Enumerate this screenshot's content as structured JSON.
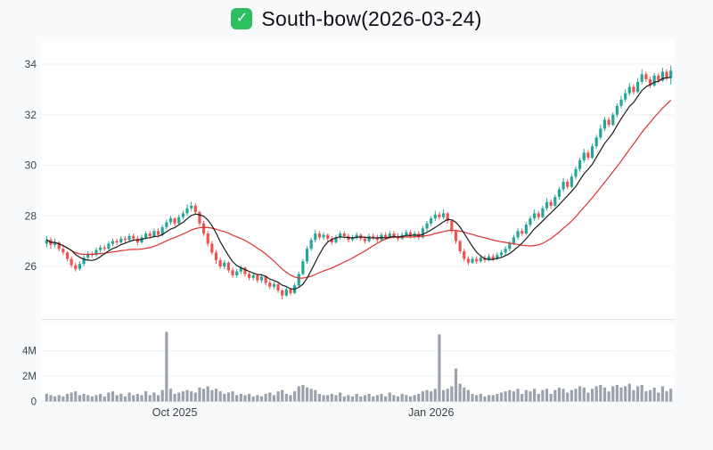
{
  "header": {
    "title": "South-bow(2026-03-24)",
    "icon": "green-check-badge",
    "icon_glyph": "✓"
  },
  "colors": {
    "up": "#26a69a",
    "down": "#ef5350",
    "ma_fast": "#1c1c1c",
    "ma_slow": "#e03131",
    "volume": "#9aa3ad",
    "grid": "#eef1f4",
    "axis_line": "#e3e7ea",
    "panel_bg": "#ffffff",
    "page_bg": "#f9fafb",
    "axis_text": "#37474f",
    "check_bg": "#2dbe60"
  },
  "price_axis": {
    "ticks": [
      {
        "label": "26",
        "value": 26
      },
      {
        "label": "28",
        "value": 28
      },
      {
        "label": "30",
        "value": 30
      },
      {
        "label": "32",
        "value": 32
      },
      {
        "label": "34",
        "value": 34
      }
    ]
  },
  "volume_axis": {
    "ticks": [
      {
        "label": "0",
        "value": 0
      },
      {
        "label": "2M",
        "value": 2
      },
      {
        "label": "4M",
        "value": 4
      }
    ]
  },
  "x_axis": {
    "ticks": [
      {
        "label": "Oct 2025",
        "index": 31
      },
      {
        "label": "Jan 2026",
        "index": 93
      }
    ]
  },
  "chart_data": {
    "type": "candlestick",
    "title": "South-bow(2026-03-24)",
    "ylim": [
      24,
      35
    ],
    "volume_ylim_millions": [
      0,
      5.7
    ],
    "legend": "none",
    "grid": true,
    "moving_averages": [
      {
        "name": "MA-fast",
        "window": 7,
        "color_key": "ma_fast"
      },
      {
        "name": "MA-slow",
        "window": 21,
        "color_key": "ma_slow"
      }
    ],
    "candles_format": [
      "open",
      "high",
      "low",
      "close",
      "volume_millions"
    ],
    "candles": [
      [
        26.9,
        27.2,
        26.75,
        27.05,
        0.6
      ],
      [
        27.05,
        27.15,
        26.7,
        26.85,
        0.5
      ],
      [
        26.85,
        27.1,
        26.75,
        26.95,
        0.4
      ],
      [
        26.95,
        27.0,
        26.6,
        26.7,
        0.5
      ],
      [
        26.7,
        26.8,
        26.45,
        26.55,
        0.4
      ],
      [
        26.55,
        26.6,
        26.2,
        26.3,
        0.6
      ],
      [
        26.3,
        26.4,
        25.95,
        26.05,
        0.7
      ],
      [
        26.05,
        26.15,
        25.8,
        25.9,
        0.8
      ],
      [
        25.9,
        26.2,
        25.85,
        26.1,
        0.5
      ],
      [
        26.1,
        26.45,
        26.0,
        26.35,
        0.6
      ],
      [
        26.35,
        26.6,
        26.25,
        26.5,
        0.5
      ],
      [
        26.5,
        26.6,
        26.35,
        26.45,
        0.4
      ],
      [
        26.45,
        26.75,
        26.4,
        26.65,
        0.5
      ],
      [
        26.65,
        26.85,
        26.55,
        26.75,
        0.6
      ],
      [
        26.75,
        26.85,
        26.6,
        26.7,
        0.4
      ],
      [
        26.7,
        27.0,
        26.65,
        26.9,
        0.7
      ],
      [
        26.9,
        27.1,
        26.8,
        27.0,
        0.8
      ],
      [
        27.0,
        27.1,
        26.85,
        26.95,
        0.5
      ],
      [
        26.95,
        27.2,
        26.9,
        27.1,
        0.6
      ],
      [
        27.1,
        27.2,
        26.95,
        27.05,
        0.4
      ],
      [
        27.05,
        27.3,
        27.0,
        27.2,
        0.7
      ],
      [
        27.2,
        27.3,
        27.0,
        27.1,
        0.5
      ],
      [
        27.1,
        27.2,
        26.85,
        26.95,
        0.6
      ],
      [
        26.95,
        27.25,
        26.9,
        27.15,
        0.5
      ],
      [
        27.15,
        27.4,
        27.05,
        27.3,
        0.8
      ],
      [
        27.3,
        27.4,
        27.1,
        27.2,
        0.5
      ],
      [
        27.2,
        27.5,
        27.15,
        27.4,
        0.7
      ],
      [
        27.4,
        27.5,
        27.15,
        27.25,
        0.5
      ],
      [
        27.25,
        27.65,
        27.2,
        27.55,
        0.9
      ],
      [
        27.55,
        27.85,
        27.45,
        27.75,
        5.5
      ],
      [
        27.75,
        28.0,
        27.65,
        27.9,
        1.0
      ],
      [
        27.9,
        27.95,
        27.6,
        27.7,
        0.6
      ],
      [
        27.7,
        28.05,
        27.65,
        27.95,
        0.7
      ],
      [
        27.95,
        28.2,
        27.85,
        28.1,
        0.8
      ],
      [
        28.1,
        28.45,
        28.0,
        28.3,
        0.9
      ],
      [
        28.3,
        28.55,
        28.2,
        28.4,
        0.8
      ],
      [
        28.4,
        28.5,
        28.05,
        28.15,
        0.7
      ],
      [
        28.15,
        28.2,
        27.6,
        27.7,
        1.1
      ],
      [
        27.7,
        27.8,
        27.2,
        27.3,
        1.0
      ],
      [
        27.3,
        27.4,
        26.8,
        26.9,
        1.2
      ],
      [
        26.9,
        27.0,
        26.45,
        26.55,
        0.9
      ],
      [
        26.55,
        26.65,
        26.1,
        26.25,
        1.0
      ],
      [
        26.25,
        26.35,
        25.9,
        26.0,
        0.8
      ],
      [
        26.0,
        26.25,
        25.9,
        26.15,
        0.6
      ],
      [
        26.15,
        26.2,
        25.75,
        25.85,
        0.7
      ],
      [
        25.85,
        25.95,
        25.55,
        25.65,
        0.8
      ],
      [
        25.65,
        25.9,
        25.55,
        25.8,
        0.5
      ],
      [
        25.8,
        26.05,
        25.7,
        25.95,
        0.6
      ],
      [
        25.95,
        26.0,
        25.6,
        25.7,
        0.5
      ],
      [
        25.7,
        25.8,
        25.45,
        25.55,
        0.6
      ],
      [
        25.55,
        25.75,
        25.45,
        25.65,
        0.4
      ],
      [
        25.65,
        25.7,
        25.35,
        25.45,
        0.5
      ],
      [
        25.45,
        25.7,
        25.35,
        25.6,
        0.4
      ],
      [
        25.6,
        25.65,
        25.25,
        25.35,
        0.6
      ],
      [
        25.35,
        25.45,
        25.1,
        25.2,
        0.7
      ],
      [
        25.2,
        25.4,
        25.1,
        25.3,
        0.5
      ],
      [
        25.3,
        25.35,
        24.95,
        25.05,
        0.8
      ],
      [
        25.05,
        25.1,
        24.7,
        24.85,
        0.9
      ],
      [
        24.85,
        25.2,
        24.8,
        25.1,
        0.6
      ],
      [
        25.1,
        25.15,
        24.85,
        24.95,
        0.5
      ],
      [
        24.95,
        25.35,
        24.9,
        25.25,
        0.8
      ],
      [
        25.25,
        25.8,
        25.2,
        25.7,
        1.2
      ],
      [
        25.7,
        26.3,
        25.65,
        26.2,
        1.3
      ],
      [
        26.2,
        26.8,
        26.1,
        26.7,
        1.1
      ],
      [
        26.7,
        27.15,
        26.6,
        27.05,
        1.0
      ],
      [
        27.05,
        27.45,
        26.95,
        27.3,
        0.9
      ],
      [
        27.3,
        27.4,
        27.05,
        27.15,
        0.6
      ],
      [
        27.15,
        27.35,
        27.05,
        27.25,
        0.5
      ],
      [
        27.25,
        27.3,
        27.0,
        27.1,
        0.5
      ],
      [
        27.1,
        27.2,
        26.85,
        26.95,
        0.6
      ],
      [
        26.95,
        27.25,
        26.9,
        27.15,
        0.5
      ],
      [
        27.15,
        27.4,
        27.05,
        27.3,
        0.7
      ],
      [
        27.3,
        27.4,
        27.1,
        27.2,
        0.4
      ],
      [
        27.2,
        27.3,
        26.95,
        27.05,
        0.5
      ],
      [
        27.05,
        27.25,
        27.0,
        27.15,
        0.4
      ],
      [
        27.15,
        27.35,
        27.05,
        27.25,
        0.6
      ],
      [
        27.25,
        27.3,
        27.0,
        27.1,
        0.4
      ],
      [
        27.1,
        27.2,
        26.9,
        27.0,
        0.5
      ],
      [
        27.0,
        27.3,
        26.95,
        27.2,
        0.6
      ],
      [
        27.2,
        27.3,
        27.05,
        27.15,
        0.4
      ],
      [
        27.15,
        27.25,
        26.95,
        27.05,
        0.5
      ],
      [
        27.05,
        27.35,
        27.0,
        27.25,
        0.6
      ],
      [
        27.25,
        27.35,
        27.05,
        27.15,
        0.4
      ],
      [
        27.15,
        27.4,
        27.1,
        27.3,
        0.7
      ],
      [
        27.3,
        27.4,
        27.1,
        27.2,
        0.5
      ],
      [
        27.2,
        27.3,
        27.0,
        27.1,
        0.4
      ],
      [
        27.1,
        27.35,
        27.05,
        27.25,
        0.6
      ],
      [
        27.25,
        27.45,
        27.15,
        27.35,
        0.5
      ],
      [
        27.35,
        27.45,
        27.1,
        27.2,
        0.4
      ],
      [
        27.2,
        27.4,
        27.1,
        27.3,
        0.5
      ],
      [
        27.3,
        27.4,
        27.05,
        27.15,
        0.6
      ],
      [
        27.15,
        27.6,
        27.1,
        27.5,
        0.8
      ],
      [
        27.5,
        27.8,
        27.4,
        27.7,
        0.9
      ],
      [
        27.7,
        28.0,
        27.6,
        27.9,
        0.8
      ],
      [
        27.9,
        28.2,
        27.8,
        28.05,
        1.0
      ],
      [
        28.05,
        28.15,
        27.85,
        27.95,
        5.3
      ],
      [
        27.95,
        28.25,
        27.85,
        28.1,
        0.9
      ],
      [
        28.1,
        28.15,
        27.7,
        27.8,
        1.0
      ],
      [
        27.8,
        27.85,
        27.3,
        27.4,
        1.2
      ],
      [
        27.4,
        27.45,
        26.9,
        27.0,
        2.6
      ],
      [
        27.0,
        27.05,
        26.5,
        26.6,
        1.4
      ],
      [
        26.6,
        26.7,
        26.2,
        26.3,
        1.1
      ],
      [
        26.3,
        26.4,
        26.05,
        26.15,
        0.9
      ],
      [
        26.15,
        26.4,
        26.1,
        26.3,
        0.6
      ],
      [
        26.3,
        26.4,
        26.1,
        26.2,
        0.5
      ],
      [
        26.2,
        26.45,
        26.15,
        26.35,
        0.6
      ],
      [
        26.35,
        26.45,
        26.15,
        26.25,
        0.4
      ],
      [
        26.25,
        26.5,
        26.2,
        26.4,
        0.5
      ],
      [
        26.4,
        26.5,
        26.2,
        26.3,
        0.5
      ],
      [
        26.3,
        26.55,
        26.25,
        26.45,
        0.6
      ],
      [
        26.45,
        26.65,
        26.35,
        26.55,
        0.7
      ],
      [
        26.55,
        26.8,
        26.45,
        26.7,
        0.8
      ],
      [
        26.7,
        27.0,
        26.6,
        26.9,
        0.9
      ],
      [
        26.9,
        27.25,
        26.85,
        27.15,
        0.8
      ],
      [
        27.15,
        27.5,
        27.05,
        27.4,
        1.0
      ],
      [
        27.4,
        27.5,
        27.2,
        27.3,
        0.6
      ],
      [
        27.3,
        27.75,
        27.25,
        27.65,
        0.9
      ],
      [
        27.65,
        28.0,
        27.55,
        27.9,
        0.8
      ],
      [
        27.9,
        28.25,
        27.8,
        28.1,
        1.0
      ],
      [
        28.1,
        28.2,
        27.85,
        27.95,
        0.6
      ],
      [
        27.95,
        28.4,
        27.9,
        28.3,
        0.9
      ],
      [
        28.3,
        28.7,
        28.2,
        28.55,
        1.0
      ],
      [
        28.55,
        28.65,
        28.3,
        28.4,
        0.6
      ],
      [
        28.4,
        28.85,
        28.35,
        28.75,
        0.9
      ],
      [
        28.75,
        29.15,
        28.65,
        29.05,
        1.1
      ],
      [
        29.05,
        29.5,
        28.95,
        29.35,
        1.0
      ],
      [
        29.35,
        29.45,
        29.05,
        29.15,
        0.7
      ],
      [
        29.15,
        29.65,
        29.1,
        29.55,
        0.9
      ],
      [
        29.55,
        29.95,
        29.45,
        29.85,
        1.0
      ],
      [
        29.85,
        30.3,
        29.75,
        30.2,
        1.2
      ],
      [
        30.2,
        30.65,
        30.1,
        30.5,
        1.1
      ],
      [
        30.5,
        30.6,
        30.2,
        30.3,
        0.7
      ],
      [
        30.3,
        30.85,
        30.25,
        30.75,
        1.0
      ],
      [
        30.75,
        31.2,
        30.65,
        31.1,
        1.2
      ],
      [
        31.1,
        31.6,
        31.0,
        31.45,
        1.3
      ],
      [
        31.45,
        31.9,
        31.35,
        31.8,
        1.1
      ],
      [
        31.8,
        31.9,
        31.5,
        31.6,
        0.8
      ],
      [
        31.6,
        32.1,
        31.55,
        32.0,
        1.2
      ],
      [
        32.0,
        32.45,
        31.9,
        32.35,
        1.3
      ],
      [
        32.35,
        32.75,
        32.25,
        32.6,
        1.1
      ],
      [
        32.6,
        33.0,
        32.5,
        32.85,
        1.2
      ],
      [
        32.85,
        33.25,
        32.75,
        33.1,
        1.4
      ],
      [
        33.1,
        33.2,
        32.8,
        32.9,
        0.9
      ],
      [
        32.9,
        33.45,
        32.85,
        33.3,
        1.2
      ],
      [
        33.3,
        33.8,
        33.2,
        33.6,
        1.3
      ],
      [
        33.6,
        33.7,
        33.3,
        33.4,
        0.8
      ],
      [
        33.4,
        33.5,
        33.05,
        33.15,
        0.9
      ],
      [
        33.15,
        33.65,
        33.1,
        33.55,
        1.1
      ],
      [
        33.55,
        33.65,
        33.25,
        33.35,
        0.7
      ],
      [
        33.35,
        33.85,
        33.3,
        33.7,
        1.2
      ],
      [
        33.7,
        33.8,
        33.35,
        33.45,
        0.8
      ],
      [
        33.45,
        33.95,
        33.2,
        33.75,
        1.0
      ]
    ]
  }
}
